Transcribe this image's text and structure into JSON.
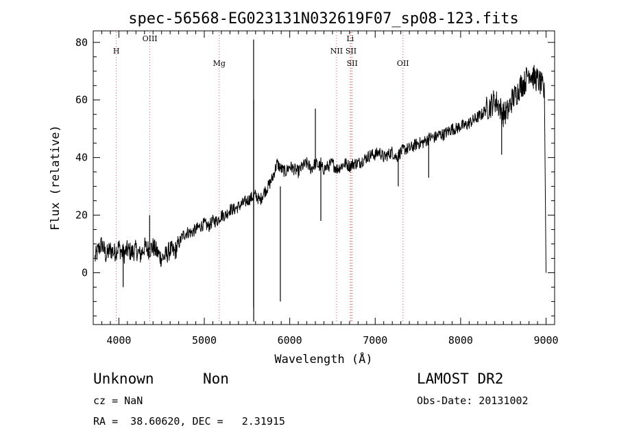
{
  "chart_data": {
    "type": "line",
    "title": "spec-56568-EG023131N032619F07_sp08-123.fits",
    "xlabel": "Wavelength (Å)",
    "ylabel": "Flux (relative)",
    "xlim": [
      3700,
      9100
    ],
    "ylim": [
      -18,
      84
    ],
    "xticks": [
      4000,
      5000,
      6000,
      7000,
      8000,
      9000
    ],
    "yticks": [
      0,
      20,
      40,
      60,
      80
    ],
    "grid": false,
    "line_color": "#000000",
    "marker_color": "#d9534f",
    "spectral_lines": [
      {
        "label": "H",
        "wavelength": 3970
      },
      {
        "label": "OIII",
        "wavelength": 4363
      },
      {
        "label": "Mg",
        "wavelength": 5175
      },
      {
        "label": "NII",
        "wavelength": 6548
      },
      {
        "label": "Li",
        "wavelength": 6708
      },
      {
        "label": "SII",
        "wavelength": 6717
      },
      {
        "label": "SII",
        "wavelength": 6731
      },
      {
        "label": "OII",
        "wavelength": 7325
      }
    ],
    "series": [
      {
        "x": [
          3720,
          3760,
          3800,
          3850,
          3900,
          3950,
          4000,
          4050,
          4100,
          4150,
          4200,
          4250,
          4300,
          4350,
          4400,
          4450,
          4500,
          4550,
          4600,
          4650,
          4700,
          4750,
          4800,
          4850,
          4900,
          4950,
          5000,
          5050,
          5100,
          5150,
          5200,
          5250,
          5300,
          5350,
          5400,
          5450,
          5500,
          5550,
          5600,
          5650,
          5700,
          5750,
          5800,
          5850,
          5900,
          5950,
          6000,
          6050,
          6100,
          6150,
          6200,
          6250,
          6300,
          6350,
          6400,
          6450,
          6500,
          6550,
          6600,
          6650,
          6700,
          6750,
          6800,
          6850,
          6900,
          6950,
          7000,
          7050,
          7100,
          7150,
          7200,
          7250,
          7300,
          7350,
          7400,
          7450,
          7500,
          7550,
          7600,
          7650,
          7700,
          7750,
          7800,
          7850,
          7900,
          7950,
          8000,
          8050,
          8100,
          8150,
          8200,
          8250,
          8300,
          8350,
          8400,
          8450,
          8500,
          8550,
          8600,
          8650,
          8700,
          8750,
          8800,
          8850,
          8900,
          8950,
          8980,
          9000
        ],
        "y": [
          5,
          8,
          10,
          6,
          8,
          7,
          9,
          6,
          8,
          7,
          8,
          6,
          9,
          8,
          9,
          7,
          5,
          6,
          8,
          7,
          10,
          13,
          14,
          14,
          15,
          16,
          17,
          16,
          18,
          18,
          20,
          20,
          22,
          22,
          23,
          24,
          25,
          26,
          27,
          25,
          28,
          30,
          33,
          38,
          36,
          35,
          37,
          36,
          35,
          37,
          38,
          36,
          38,
          37,
          36,
          37,
          38,
          36,
          37,
          38,
          37,
          38,
          38,
          39,
          40,
          41,
          41,
          42,
          40,
          41,
          42,
          40,
          42,
          43,
          43,
          44,
          45,
          45,
          46,
          47,
          47,
          48,
          48,
          49,
          50,
          50,
          51,
          51,
          52,
          53,
          54,
          55,
          57,
          58,
          60,
          58,
          55,
          56,
          60,
          62,
          65,
          66,
          70,
          68,
          67,
          65,
          62,
          0
        ]
      }
    ]
  },
  "info": {
    "line1_left": "Unknown",
    "line1_mid": "Non",
    "line1_right": "LAMOST DR2",
    "line2_left": "cz = NaN",
    "line2_right": "Obs-Date: 20131002",
    "line3_left": "RA =  38.60620, DEC =   2.31915"
  }
}
